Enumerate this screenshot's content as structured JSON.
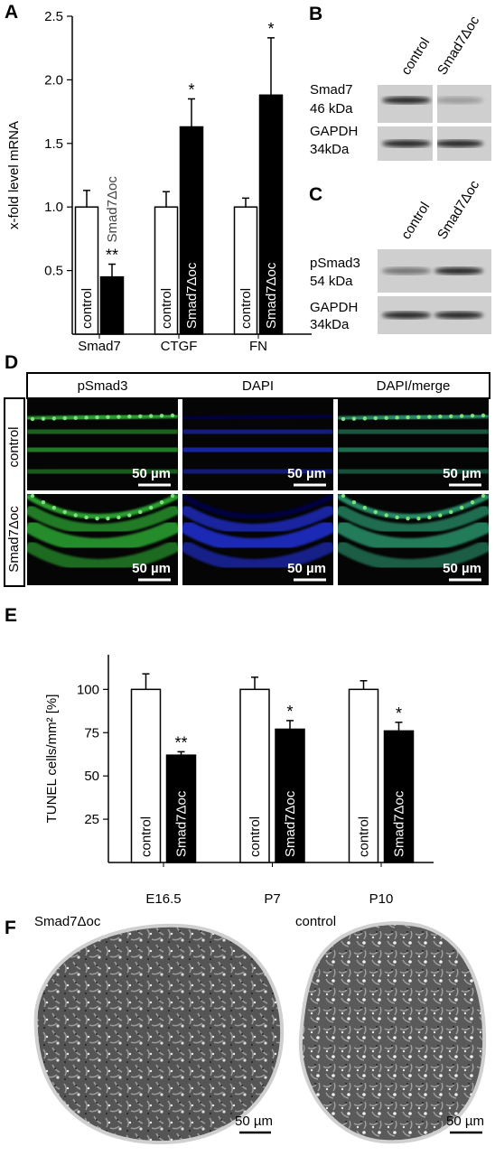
{
  "chart_data": [
    {
      "type": "bar",
      "panel_label": "A",
      "y_label": "x-fold level mRNA",
      "categories": [
        "Smad7",
        "CTGF",
        "FN"
      ],
      "series": [
        {
          "name": "control",
          "color": "#ffffff",
          "values": [
            1.0,
            1.0,
            1.0
          ],
          "errors": [
            0.13,
            0.12,
            0.07
          ]
        },
        {
          "name": "Smad7Δoc",
          "color": "#000000",
          "values": [
            0.45,
            1.63,
            1.88
          ],
          "errors": [
            0.1,
            0.22,
            0.45
          ],
          "significance": [
            "**",
            "*",
            "*"
          ]
        }
      ],
      "ylim": [
        0,
        2.5
      ],
      "yticks": [
        {
          "value": 0.5,
          "label": "0.5"
        },
        {
          "value": 1,
          "label": "1.0"
        },
        {
          "value": 1.5,
          "label": "1.5"
        },
        {
          "value": 2,
          "label": "2.0"
        },
        {
          "value": 2.5,
          "label": "2.5"
        }
      ]
    },
    {
      "type": "bar",
      "panel_label": "E",
      "y_label": "TUNEL cells/mm² [%]",
      "categories": [
        "E16.5",
        "P7",
        "P10"
      ],
      "series": [
        {
          "name": "control",
          "color": "#ffffff",
          "values": [
            100,
            100,
            100
          ],
          "errors": [
            9,
            7,
            5
          ]
        },
        {
          "name": "Smad7Δoc",
          "color": "#000000",
          "values": [
            62,
            77,
            76
          ],
          "errors": [
            2,
            5,
            5
          ],
          "significance": [
            "**",
            "*",
            "*"
          ]
        }
      ],
      "ylim": [
        0,
        120
      ],
      "yticks": [
        25,
        50,
        75,
        100
      ]
    }
  ],
  "blots": [
    {
      "panel_label": "B",
      "columns": [
        "control",
        "Smad7Δoc"
      ],
      "rows": [
        {
          "name": "Smad7",
          "size": "46 kDa"
        },
        {
          "name": "GAPDH",
          "size": "34kDa"
        }
      ]
    },
    {
      "panel_label": "C",
      "columns": [
        "control",
        "Smad7Δoc"
      ],
      "rows": [
        {
          "name": "pSmad3",
          "size": "54 kDa"
        },
        {
          "name": "GAPDH",
          "size": "34kDa"
        }
      ]
    }
  ],
  "micrographs": {
    "panel_label": "D",
    "columns": [
      "pSmad3",
      "DAPI",
      "DAPI/merge"
    ],
    "rows": [
      "control",
      "Smad7Δoc"
    ],
    "scale_bar": "50 µm"
  },
  "sections": {
    "panel_label": "F",
    "panels": [
      "Smad7Δoc",
      "control"
    ],
    "scale_bar": "50 µm"
  }
}
